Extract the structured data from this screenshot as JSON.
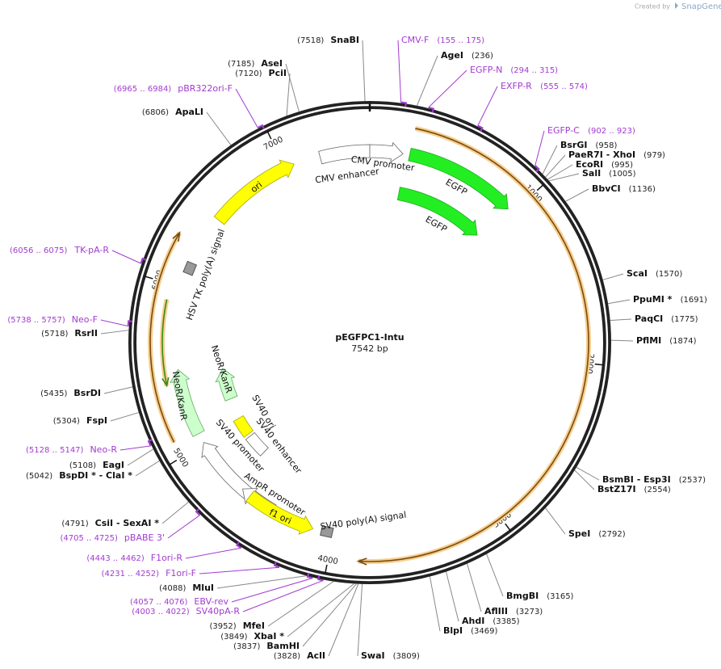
{
  "header": {
    "created_by": "Created by",
    "brand": "SnapGene"
  },
  "map": {
    "name": "pEGFPC1-Intu",
    "length": "7542 bp",
    "sites": [
      {
        "name": "SnaBI",
        "position": "(7518)"
      },
      {
        "name": "AseI",
        "position": "(7185)"
      },
      {
        "name": "PciI",
        "position": "(7120)"
      },
      {
        "name": "ApaLI",
        "position": "(6806)"
      },
      {
        "name": "RsrII",
        "position": "(5718)"
      },
      {
        "name": "BsrDI",
        "position": "(5435)"
      },
      {
        "name": "FspI",
        "position": "(5304)"
      },
      {
        "name": "EagI",
        "position": "(5108)"
      },
      {
        "name": "BspDI * - ClaI *",
        "position": "(5042)"
      },
      {
        "name": "CsiI - SexAI *",
        "position": "(4791)"
      },
      {
        "name": "MluI",
        "position": "(4088)"
      },
      {
        "name": "MfeI",
        "position": "(3952)"
      },
      {
        "name": "XbaI *",
        "position": "(3849)"
      },
      {
        "name": "BamHI",
        "position": "(3837)"
      },
      {
        "name": "AclI",
        "position": "(3828)"
      },
      {
        "name": "SwaI",
        "position": "(3809)"
      },
      {
        "name": "AgeI",
        "position": "(236)"
      },
      {
        "name": "BsrGI",
        "position": "(958)"
      },
      {
        "name": "PaeR7I - XhoI",
        "position": "(979)"
      },
      {
        "name": "EcoRI",
        "position": "(995)"
      },
      {
        "name": "SalI",
        "position": "(1005)"
      },
      {
        "name": "BbvCI",
        "position": "(1136)"
      },
      {
        "name": "ScaI",
        "position": "(1570)"
      },
      {
        "name": "PpuMI *",
        "position": "(1691)"
      },
      {
        "name": "PaqCI",
        "position": "(1775)"
      },
      {
        "name": "PflMI",
        "position": "(1874)"
      },
      {
        "name": "BsmBI - Esp3I",
        "position": "(2537)"
      },
      {
        "name": "BstZ17I",
        "position": "(2554)"
      },
      {
        "name": "SpeI",
        "position": "(2792)"
      },
      {
        "name": "BmgBI",
        "position": "(3165)"
      },
      {
        "name": "AflIII",
        "position": "(3273)"
      },
      {
        "name": "AhdI",
        "position": "(3385)"
      },
      {
        "name": "BlpI",
        "position": "(3469)"
      }
    ],
    "primers": [
      {
        "name": "pBR322ori-F",
        "range": "(6965 .. 6984)"
      },
      {
        "name": "TK-pA-R",
        "range": "(6056 .. 6075)"
      },
      {
        "name": "Neo-F",
        "range": "(5738 .. 5757)"
      },
      {
        "name": "Neo-R",
        "range": "(5128 .. 5147)"
      },
      {
        "name": "pBABE 3'",
        "range": "(4705 .. 4725)"
      },
      {
        "name": "F1ori-R",
        "range": "(4443 .. 4462)"
      },
      {
        "name": "F1ori-F",
        "range": "(4231 .. 4252)"
      },
      {
        "name": "EBV-rev",
        "range": "(4057 .. 4076)"
      },
      {
        "name": "SV40pA-R",
        "range": "(4003 .. 4022)"
      },
      {
        "name": "CMV-F",
        "range": "(155 .. 175)"
      },
      {
        "name": "EGFP-N",
        "range": "(294 .. 315)"
      },
      {
        "name": "EXFP-R",
        "range": "(555 .. 574)"
      },
      {
        "name": "EGFP-C",
        "range": "(902 .. 923)"
      }
    ],
    "features": [
      "CMV enhancer",
      "CMV promoter",
      "EGFP",
      "EGFP",
      "ori",
      "HSV TK poly(A) signal",
      "NeoR/KanR",
      "NeoR/KanR",
      "SV40 ori",
      "SV40 enhancer",
      "SV40 promoter",
      "AmpR promoter",
      "f1 ori",
      "SV40 poly(A) signal"
    ],
    "ticks": [
      "1000",
      "2000",
      "3000",
      "4000",
      "5000",
      "6000",
      "7000"
    ]
  }
}
